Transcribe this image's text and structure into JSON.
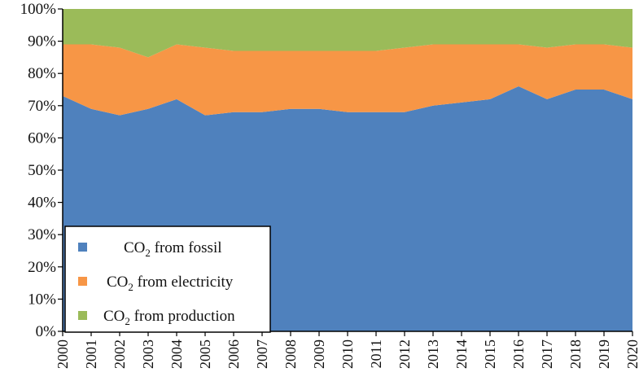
{
  "chart_data": {
    "type": "area",
    "stacked": true,
    "normalized": true,
    "title": "",
    "xlabel": "",
    "ylabel": "",
    "x": [
      "2000",
      "2001",
      "2002",
      "2003",
      "2004",
      "2005",
      "2006",
      "2007",
      "2008",
      "2009",
      "2010",
      "2011",
      "2012",
      "2013",
      "2014",
      "2015",
      "2016",
      "2017",
      "2018",
      "2019",
      "2020"
    ],
    "ylim": [
      0,
      100
    ],
    "yticks": [
      "0%",
      "10%",
      "20%",
      "30%",
      "40%",
      "50%",
      "60%",
      "70%",
      "80%",
      "90%",
      "100%"
    ],
    "legend_position": "bottom-left",
    "series": [
      {
        "name": "CO2 from fossil",
        "label_prefix": "CO",
        "label_sub": "2",
        "label_suffix": " from fossil",
        "color": "#4F81BD",
        "values": [
          73,
          69,
          67,
          69,
          72,
          67,
          68,
          68,
          69,
          69,
          68,
          68,
          68,
          70,
          71,
          72,
          76,
          72,
          75,
          75,
          72
        ]
      },
      {
        "name": "CO2 from electricity",
        "label_prefix": "CO",
        "label_sub": "2",
        "label_suffix": " from electricity",
        "color": "#F79646",
        "values": [
          16,
          20,
          21,
          16,
          17,
          21,
          19,
          19,
          18,
          18,
          19,
          19,
          20,
          19,
          18,
          17,
          13,
          16,
          14,
          14,
          16
        ]
      },
      {
        "name": "CO2 from production",
        "label_prefix": "CO",
        "label_sub": "2",
        "label_suffix": " from production",
        "color": "#9BBB59",
        "values": [
          11,
          11,
          12,
          15,
          11,
          12,
          13,
          13,
          13,
          13,
          13,
          13,
          12,
          11,
          11,
          11,
          11,
          12,
          11,
          11,
          12
        ]
      }
    ]
  }
}
